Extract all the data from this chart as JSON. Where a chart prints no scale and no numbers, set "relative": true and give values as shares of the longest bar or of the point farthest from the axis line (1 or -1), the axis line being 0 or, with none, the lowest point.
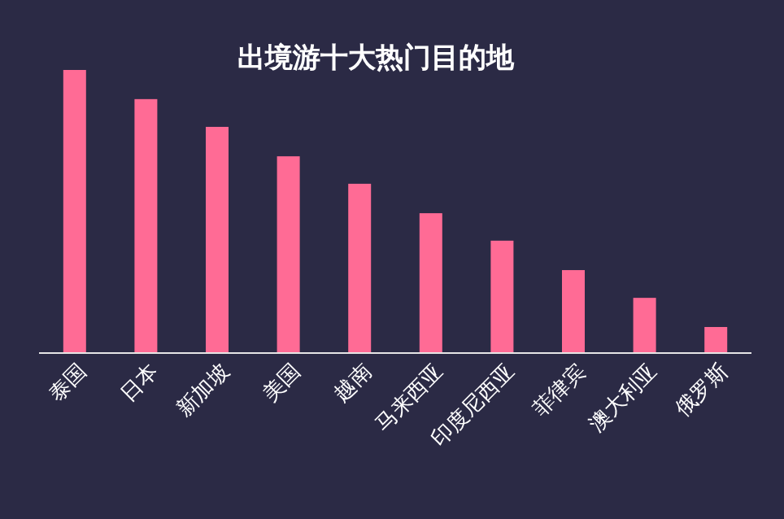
{
  "chart_data": {
    "type": "bar",
    "title": "出境游十大热门目的地",
    "relative": true,
    "categories": [
      "泰国",
      "日本",
      "新加坡",
      "美国",
      "越南",
      "马来西亚",
      "印度尼西亚",
      "菲律宾",
      "澳大利亚",
      "俄罗斯"
    ],
    "values": [
      1,
      0.897,
      0.799,
      0.695,
      0.598,
      0.494,
      0.397,
      0.293,
      0.195,
      0.092
    ],
    "color": "#ff6b95"
  }
}
